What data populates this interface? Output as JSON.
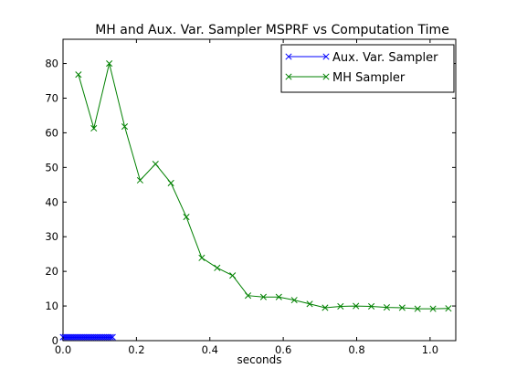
{
  "chart_data": {
    "type": "line",
    "title": "MH and Aux. Var. Sampler MSPRF vs Computation Time",
    "xlabel": "seconds",
    "ylabel": "",
    "xlim": [
      0.0,
      1.07
    ],
    "ylim": [
      0,
      87
    ],
    "x_ticks": [
      0.0,
      0.2,
      0.4,
      0.6,
      0.8,
      1.0
    ],
    "x_tick_labels": [
      "0.0",
      "0.2",
      "0.4",
      "0.6",
      "0.8",
      "1.0"
    ],
    "y_ticks": [
      0,
      10,
      20,
      30,
      40,
      50,
      60,
      70,
      80
    ],
    "y_tick_labels": [
      "0",
      "10",
      "20",
      "30",
      "40",
      "50",
      "60",
      "70",
      "80"
    ],
    "grid": false,
    "legend_position": "top-right",
    "series": [
      {
        "name": "Aux. Var. Sampler",
        "color": "#0000ff",
        "marker": "x",
        "x": [
          0.0,
          0.005,
          0.01,
          0.015,
          0.02,
          0.025,
          0.03,
          0.035,
          0.04,
          0.045,
          0.05,
          0.055,
          0.06,
          0.065,
          0.07,
          0.075,
          0.08,
          0.085,
          0.09,
          0.095,
          0.1,
          0.105,
          0.11,
          0.115,
          0.12,
          0.125,
          0.13,
          0.135
        ],
        "y": [
          1.0,
          1.0,
          1.0,
          1.0,
          1.0,
          1.0,
          1.0,
          1.0,
          1.0,
          1.0,
          1.0,
          1.0,
          1.0,
          1.0,
          1.0,
          1.0,
          1.0,
          1.0,
          1.0,
          1.0,
          1.0,
          1.0,
          1.0,
          1.0,
          1.0,
          1.0,
          1.0,
          1.0
        ]
      },
      {
        "name": "MH Sampler",
        "color": "#008000",
        "marker": "x",
        "x": [
          0.042,
          0.084,
          0.126,
          0.168,
          0.21,
          0.252,
          0.294,
          0.336,
          0.378,
          0.42,
          0.462,
          0.504,
          0.546,
          0.588,
          0.63,
          0.672,
          0.714,
          0.756,
          0.798,
          0.84,
          0.882,
          0.924,
          0.966,
          1.008,
          1.05
        ],
        "y": [
          76.8,
          61.3,
          80.0,
          61.8,
          46.3,
          51.0,
          45.5,
          35.7,
          23.9,
          21.0,
          18.8,
          13.0,
          12.6,
          12.6,
          11.7,
          10.6,
          9.5,
          9.9,
          10.0,
          9.9,
          9.6,
          9.5,
          9.2,
          9.2,
          9.3
        ]
      }
    ]
  }
}
